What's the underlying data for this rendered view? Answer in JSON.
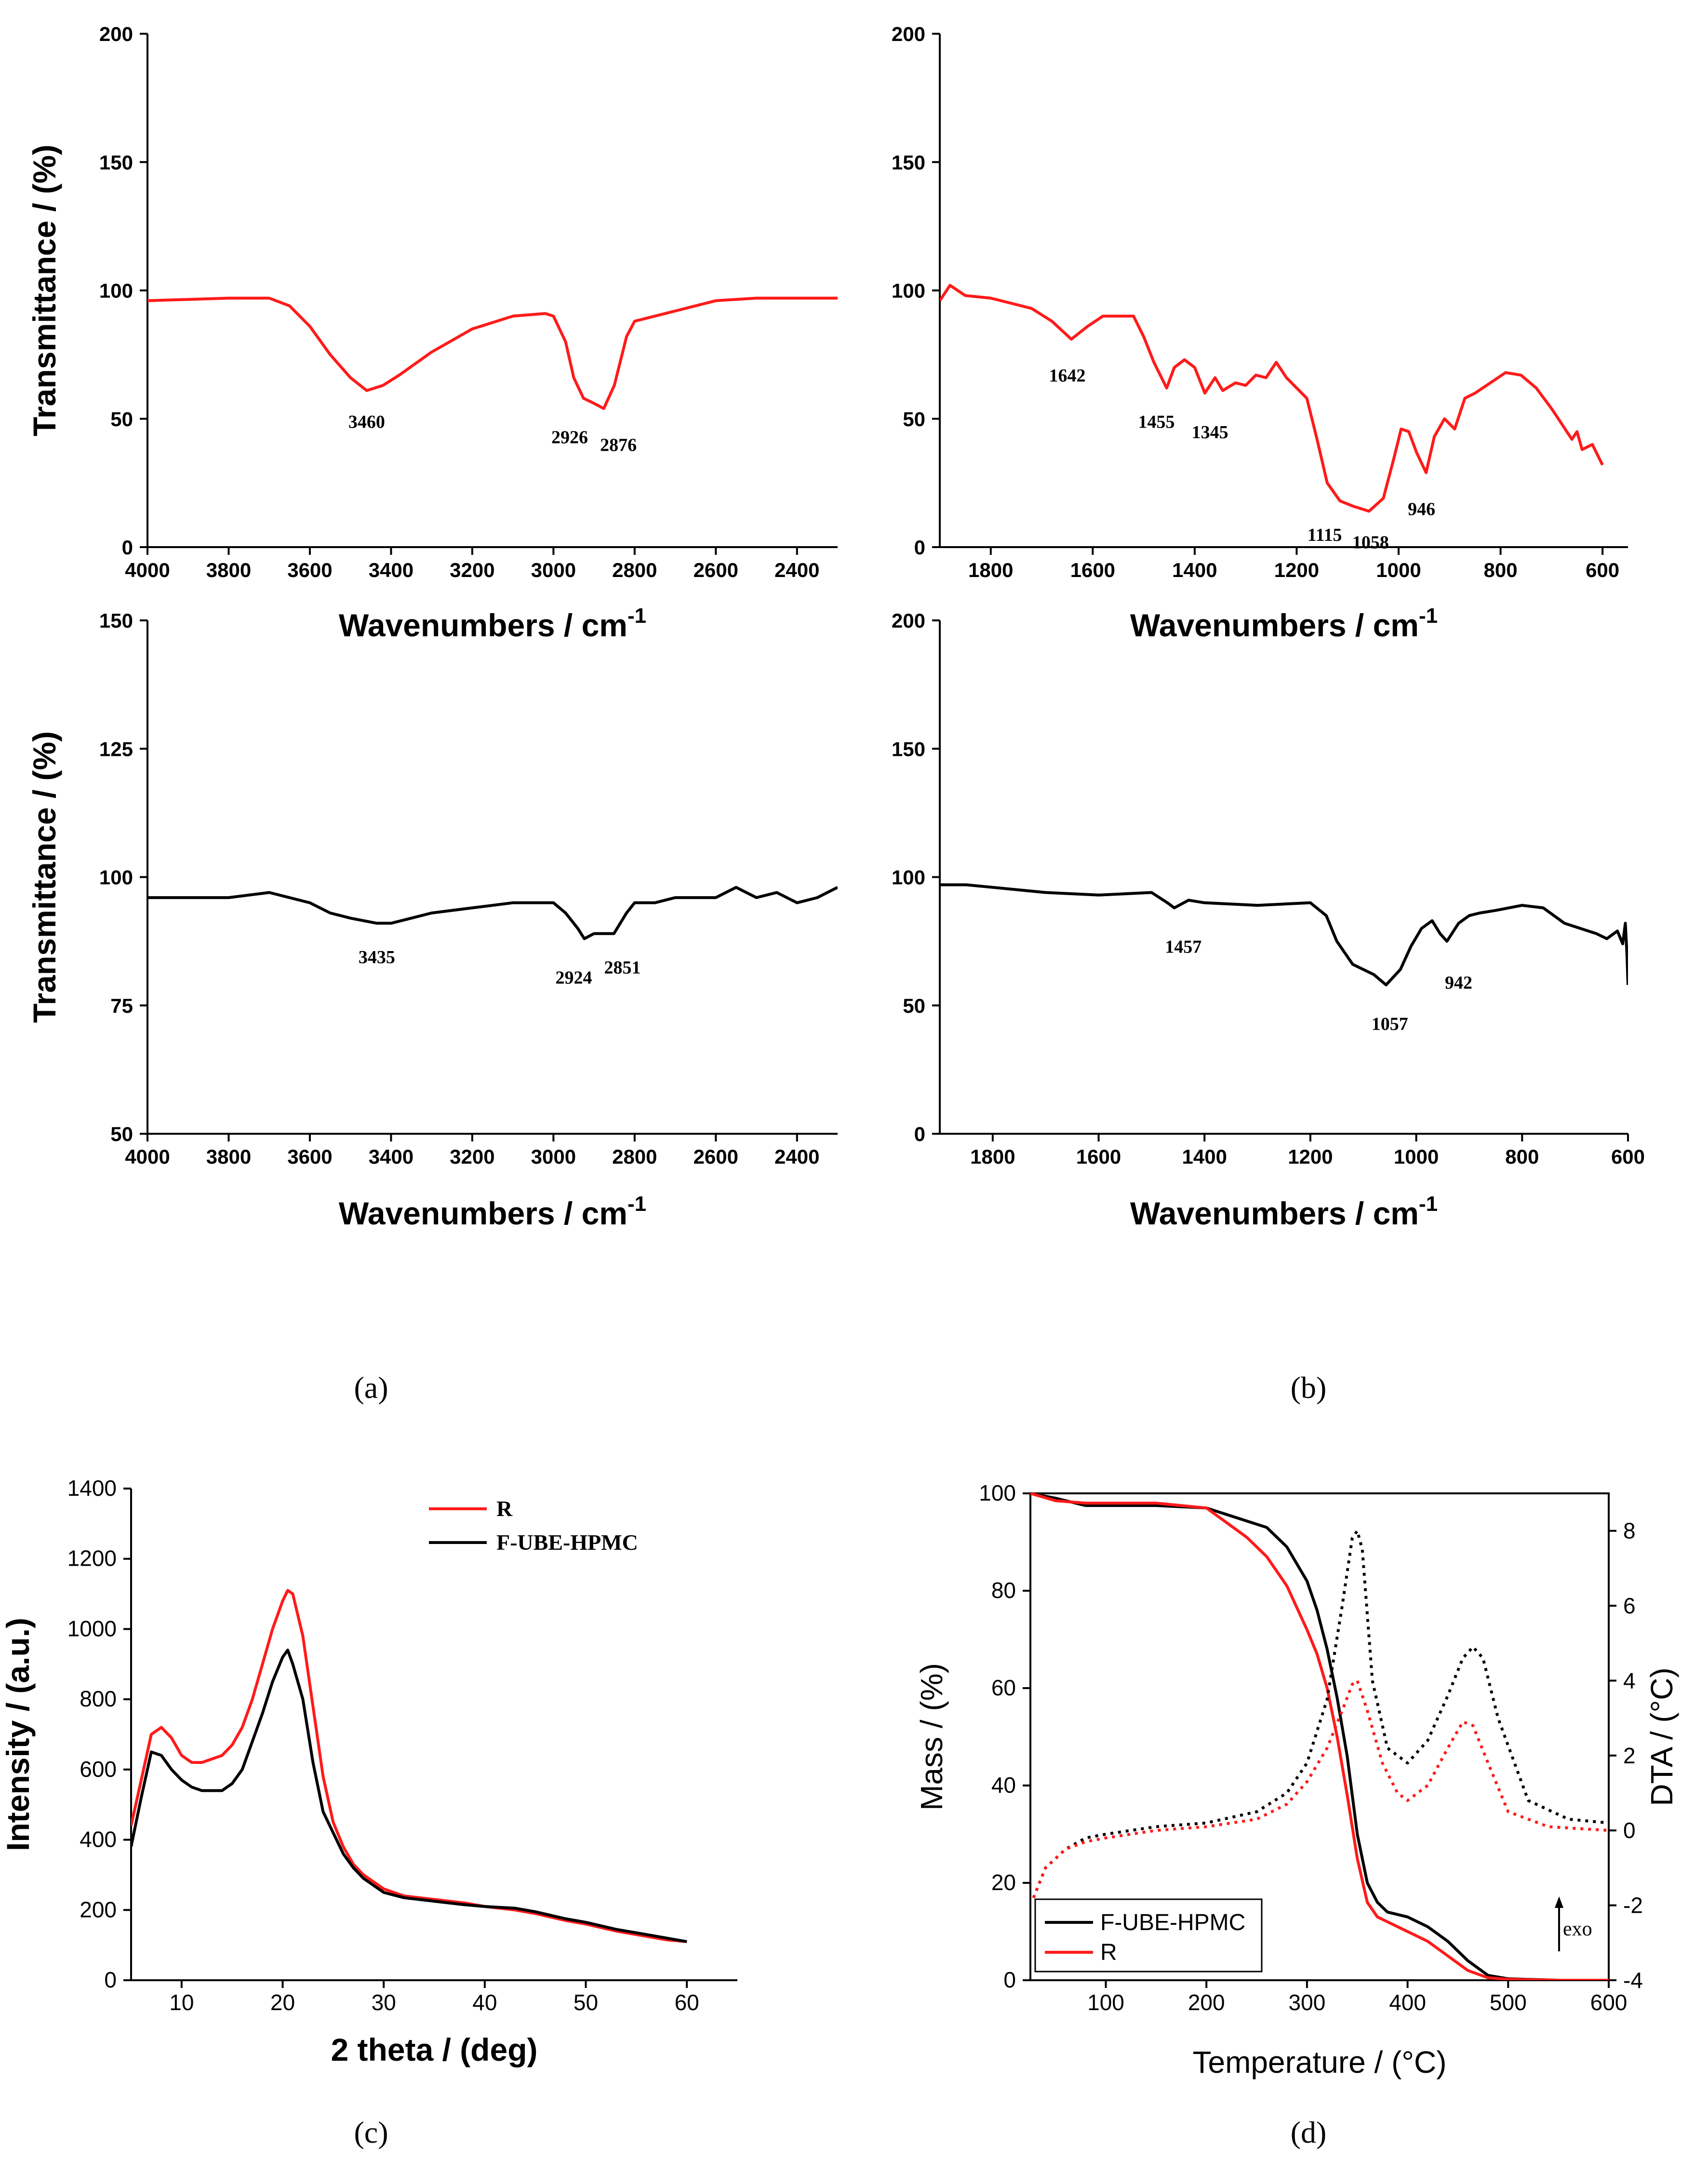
{
  "colors": {
    "red": "#ff1a1a",
    "black": "#000000"
  },
  "panel_labels": {
    "a": "(a)",
    "b": "(b)",
    "c": "(c)",
    "d": "(d)"
  },
  "chart_data": [
    {
      "id": "ftir-r-high",
      "type": "line",
      "xlabel": "Wavenumbers / cm",
      "xlabel_sup": "-1",
      "ylabel": "Transmittance / (%)",
      "xlim": [
        4000,
        2300
      ],
      "ylim": [
        0,
        200
      ],
      "xticks": [
        4000,
        3800,
        3600,
        3400,
        3200,
        3000,
        2800,
        2600,
        2400
      ],
      "yticks": [
        0,
        50,
        100,
        150,
        200
      ],
      "series": [
        {
          "name": "R",
          "color": "#ff1a1a",
          "x": [
            4000,
            3800,
            3700,
            3650,
            3600,
            3550,
            3500,
            3460,
            3420,
            3380,
            3300,
            3200,
            3100,
            3020,
            3000,
            2970,
            2950,
            2926,
            2900,
            2876,
            2850,
            2820,
            2800,
            2700,
            2600,
            2500,
            2400,
            2300
          ],
          "y": [
            96,
            97,
            97,
            94,
            86,
            75,
            66,
            61,
            63,
            67,
            76,
            85,
            90,
            91,
            90,
            80,
            66,
            58,
            56,
            54,
            63,
            82,
            88,
            92,
            96,
            97,
            97,
            97
          ]
        }
      ],
      "annotations": [
        {
          "text": "3460",
          "x": 3460,
          "y": 54
        },
        {
          "text": "2926",
          "x": 2960,
          "y": 48
        },
        {
          "text": "2876",
          "x": 2840,
          "y": 45
        }
      ]
    },
    {
      "id": "ftir-r-low",
      "type": "line",
      "xlabel": "Wavenumbers / cm",
      "xlabel_sup": "-1",
      "ylabel": "",
      "xlim": [
        1900,
        550
      ],
      "ylim": [
        0,
        200
      ],
      "xticks": [
        1800,
        1600,
        1400,
        1200,
        1000,
        800,
        600
      ],
      "yticks": [
        0,
        50,
        100,
        150,
        200
      ],
      "series": [
        {
          "name": "R",
          "color": "#ff1a1a",
          "x": [
            1900,
            1880,
            1850,
            1800,
            1760,
            1720,
            1680,
            1642,
            1610,
            1580,
            1520,
            1500,
            1480,
            1455,
            1440,
            1420,
            1400,
            1380,
            1360,
            1345,
            1320,
            1300,
            1280,
            1260,
            1240,
            1220,
            1200,
            1180,
            1160,
            1140,
            1115,
            1090,
            1058,
            1030,
            1010,
            995,
            980,
            965,
            946,
            930,
            910,
            890,
            870,
            850,
            820,
            790,
            760,
            730,
            700,
            680,
            660,
            650,
            640,
            620,
            600
          ],
          "y": [
            96,
            102,
            98,
            97,
            95,
            93,
            88,
            81,
            86,
            90,
            90,
            82,
            72,
            62,
            70,
            73,
            70,
            60,
            66,
            61,
            64,
            63,
            67,
            66,
            72,
            66,
            62,
            58,
            42,
            25,
            18,
            16,
            14,
            19,
            34,
            46,
            45,
            37,
            29,
            43,
            50,
            46,
            58,
            60,
            64,
            68,
            67,
            62,
            54,
            48,
            42,
            45,
            38,
            40,
            32
          ]
        }
      ],
      "annotations": [
        {
          "text": "1642",
          "x": 1650,
          "y": 72
        },
        {
          "text": "1455",
          "x": 1475,
          "y": 54
        },
        {
          "text": "1345",
          "x": 1370,
          "y": 50
        },
        {
          "text": "1115",
          "x": 1145,
          "y": 10
        },
        {
          "text": "1058",
          "x": 1055,
          "y": 7
        },
        {
          "text": "946",
          "x": 955,
          "y": 20
        }
      ]
    },
    {
      "id": "ftir-f-high",
      "type": "line",
      "xlabel": "Wavenumbers / cm",
      "xlabel_sup": "-1",
      "ylabel": "Transmittance / (%)",
      "xlim": [
        4000,
        2300
      ],
      "ylim": [
        50,
        150
      ],
      "xticks": [
        4000,
        3800,
        3600,
        3400,
        3200,
        3000,
        2800,
        2600,
        2400
      ],
      "yticks": [
        50,
        75,
        100,
        125,
        150
      ],
      "series": [
        {
          "name": "F-UBE-HPMC",
          "color": "#000000",
          "x": [
            4000,
            3900,
            3800,
            3700,
            3600,
            3550,
            3500,
            3435,
            3400,
            3350,
            3300,
            3200,
            3100,
            3000,
            2970,
            2940,
            2924,
            2900,
            2870,
            2851,
            2820,
            2800,
            2750,
            2700,
            2600,
            2550,
            2500,
            2450,
            2400,
            2350,
            2300
          ],
          "y": [
            96,
            96,
            96,
            97,
            95,
            93,
            92,
            91,
            91,
            92,
            93,
            94,
            95,
            95,
            93,
            90,
            88,
            89,
            89,
            89,
            93,
            95,
            95,
            96,
            96,
            98,
            96,
            97,
            95,
            96,
            98
          ]
        }
      ],
      "annotations": [
        {
          "text": "3435",
          "x": 3435,
          "y": 87
        },
        {
          "text": "2924",
          "x": 2950,
          "y": 83
        },
        {
          "text": "2851",
          "x": 2830,
          "y": 85
        }
      ]
    },
    {
      "id": "ftir-f-low",
      "type": "line",
      "xlabel": "Wavenumbers / cm",
      "xlabel_sup": "-1",
      "ylabel": "",
      "xlim": [
        1900,
        600
      ],
      "ylim": [
        0,
        200
      ],
      "xticks": [
        1800,
        1600,
        1400,
        1200,
        1000,
        800,
        600
      ],
      "yticks": [
        0,
        50,
        100,
        150,
        200
      ],
      "series": [
        {
          "name": "F-UBE-HPMC",
          "color": "#000000",
          "x": [
            1900,
            1850,
            1800,
            1700,
            1600,
            1500,
            1470,
            1457,
            1430,
            1400,
            1300,
            1200,
            1170,
            1150,
            1120,
            1100,
            1080,
            1057,
            1030,
            1010,
            990,
            970,
            955,
            942,
            920,
            900,
            880,
            850,
            800,
            760,
            720,
            690,
            660,
            640,
            620,
            610,
            605,
            602,
            600
          ],
          "y": [
            97,
            97,
            96,
            94,
            93,
            94,
            90,
            88,
            91,
            90,
            89,
            90,
            85,
            75,
            66,
            64,
            62,
            58,
            64,
            73,
            80,
            83,
            78,
            75,
            82,
            85,
            86,
            87,
            89,
            88,
            82,
            80,
            78,
            76,
            79,
            74,
            82,
            70,
            58
          ]
        }
      ],
      "annotations": [
        {
          "text": "1457",
          "x": 1440,
          "y": 78
        },
        {
          "text": "1057",
          "x": 1050,
          "y": 48
        },
        {
          "text": "942",
          "x": 920,
          "y": 64
        }
      ]
    },
    {
      "id": "xrd",
      "type": "line",
      "xlabel": "2 theta / (deg)",
      "ylabel": "Intensity / (a.u.)",
      "xlim": [
        5,
        65
      ],
      "ylim": [
        0,
        1400
      ],
      "xticks": [
        10,
        20,
        30,
        40,
        50,
        60
      ],
      "yticks": [
        0,
        200,
        400,
        600,
        800,
        1000,
        1200,
        1400
      ],
      "legend": [
        "R",
        "F-UBE-HPMC"
      ],
      "legend_position": "top-right",
      "series": [
        {
          "name": "R",
          "color": "#ff1a1a",
          "x": [
            5,
            6,
            7,
            8,
            9,
            10,
            11,
            12,
            13,
            14,
            15,
            16,
            17,
            18,
            19,
            20,
            20.5,
            21,
            22,
            23,
            24,
            25,
            26,
            27,
            28,
            29,
            30,
            32,
            35,
            38,
            40,
            43,
            45,
            48,
            50,
            53,
            55,
            58,
            60
          ],
          "y": [
            440,
            570,
            700,
            720,
            690,
            640,
            620,
            620,
            630,
            640,
            670,
            720,
            800,
            900,
            1000,
            1080,
            1110,
            1100,
            980,
            780,
            580,
            450,
            380,
            330,
            300,
            280,
            260,
            240,
            230,
            220,
            210,
            200,
            190,
            170,
            160,
            140,
            130,
            115,
            110
          ]
        },
        {
          "name": "F-UBE-HPMC",
          "color": "#000000",
          "x": [
            5,
            6,
            7,
            8,
            9,
            10,
            11,
            12,
            13,
            14,
            15,
            16,
            17,
            18,
            19,
            20,
            20.5,
            21,
            22,
            23,
            24,
            25,
            26,
            27,
            28,
            29,
            30,
            32,
            35,
            38,
            40,
            43,
            45,
            48,
            50,
            53,
            55,
            58,
            60
          ],
          "y": [
            380,
            520,
            650,
            640,
            600,
            570,
            550,
            540,
            540,
            540,
            560,
            600,
            680,
            760,
            850,
            920,
            940,
            900,
            800,
            620,
            480,
            420,
            360,
            320,
            290,
            270,
            250,
            235,
            225,
            215,
            210,
            205,
            195,
            175,
            165,
            145,
            135,
            120,
            110
          ]
        }
      ]
    },
    {
      "id": "tga-dta",
      "type": "line",
      "xlabel": "Temperature / (°C)",
      "ylabel": "Mass / (%)",
      "y2label": "DTA / (°C)",
      "xlim": [
        25,
        600
      ],
      "ylim": [
        0,
        100
      ],
      "y2lim": [
        -4,
        9
      ],
      "xticks": [
        100,
        200,
        300,
        400,
        500,
        600
      ],
      "yticks": [
        0,
        20,
        40,
        60,
        80,
        100
      ],
      "y2ticks": [
        -4,
        -2,
        0,
        2,
        4,
        6,
        8
      ],
      "legend": [
        "F-UBE-HPMC",
        "R"
      ],
      "legend_position": "bottom-left",
      "arrow_text": "exo",
      "series": [
        {
          "name": "F-UBE-HPMC mass",
          "color": "#000000",
          "style": "solid",
          "axis": "y",
          "x": [
            25,
            50,
            80,
            100,
            150,
            200,
            230,
            260,
            280,
            300,
            310,
            320,
            330,
            340,
            350,
            360,
            370,
            380,
            400,
            420,
            440,
            460,
            480,
            500,
            550,
            600
          ],
          "y": [
            100,
            99,
            97.5,
            97.5,
            97.5,
            97,
            95,
            93,
            89,
            82,
            76,
            68,
            58,
            46,
            30,
            20,
            16,
            14,
            13,
            11,
            8,
            4,
            1,
            0.3,
            0,
            0
          ]
        },
        {
          "name": "R mass",
          "color": "#ff1a1a",
          "style": "solid",
          "axis": "y",
          "x": [
            25,
            50,
            80,
            100,
            150,
            200,
            220,
            240,
            260,
            280,
            300,
            310,
            320,
            330,
            340,
            350,
            360,
            370,
            380,
            400,
            420,
            440,
            460,
            480,
            500,
            550,
            600
          ],
          "y": [
            100,
            98.5,
            98,
            98,
            98,
            97,
            94,
            91,
            87,
            81,
            72,
            67,
            60,
            50,
            38,
            25,
            16,
            13,
            12,
            10,
            8,
            5,
            2,
            0.5,
            0.2,
            0,
            0
          ]
        },
        {
          "name": "F-UBE-HPMC DTA",
          "color": "#000000",
          "style": "dotted",
          "axis": "y2",
          "x": [
            28,
            40,
            60,
            80,
            100,
            150,
            200,
            250,
            280,
            300,
            320,
            335,
            345,
            350,
            355,
            365,
            380,
            400,
            420,
            440,
            455,
            465,
            475,
            490,
            520,
            560,
            600
          ],
          "y": [
            -1.8,
            -1.0,
            -0.5,
            -0.2,
            -0.1,
            0.1,
            0.2,
            0.5,
            1.0,
            1.8,
            3.5,
            6.0,
            7.8,
            8.0,
            7.5,
            4.0,
            2.2,
            1.8,
            2.4,
            3.6,
            4.6,
            4.9,
            4.6,
            3.0,
            0.8,
            0.3,
            0.2
          ]
        },
        {
          "name": "R DTA",
          "color": "#ff1a1a",
          "style": "dotted",
          "axis": "y2",
          "x": [
            28,
            40,
            60,
            80,
            100,
            150,
            200,
            250,
            280,
            300,
            320,
            335,
            345,
            350,
            360,
            375,
            390,
            400,
            420,
            440,
            455,
            465,
            480,
            500,
            540,
            600
          ],
          "y": [
            -1.8,
            -1.0,
            -0.5,
            -0.3,
            -0.2,
            0.0,
            0.1,
            0.3,
            0.7,
            1.3,
            2.2,
            3.2,
            3.9,
            4.0,
            3.2,
            1.8,
            1.0,
            0.8,
            1.2,
            2.2,
            2.9,
            2.8,
            1.8,
            0.5,
            0.1,
            0.0
          ]
        }
      ]
    }
  ]
}
